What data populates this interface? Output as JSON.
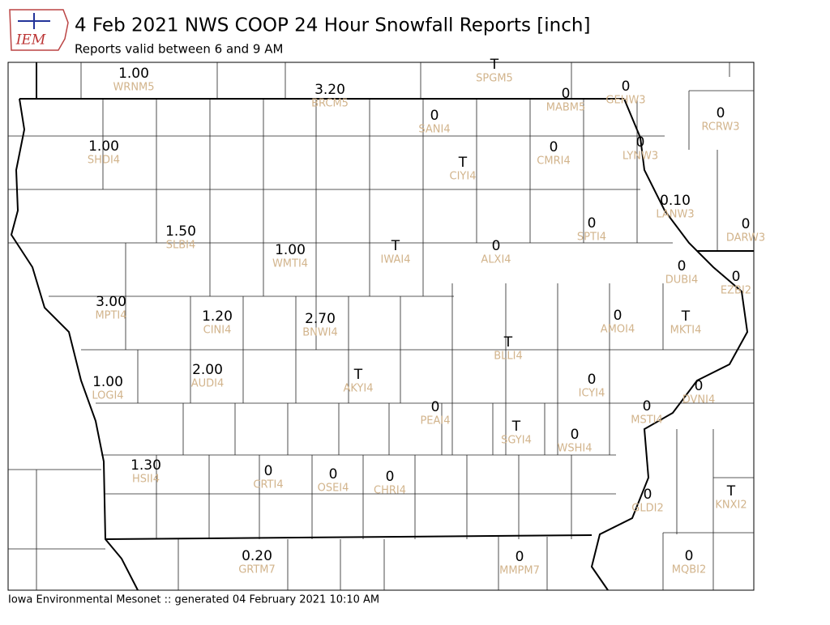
{
  "header": {
    "logo": "IEM",
    "title": "4 Feb 2021 NWS COOP 24 Hour Snowfall Reports [inch]",
    "subtitle": "Reports valid between 6 and 9 AM"
  },
  "footer": "Iowa Environmental Mesonet :: generated 04 February 2021 10:10 AM",
  "stations": [
    {
      "value": "1.00",
      "id": "WRNM5"
    },
    {
      "value": "3.20",
      "id": "BRCM5"
    },
    {
      "value": "T",
      "id": "SPGM5"
    },
    {
      "value": "0",
      "id": "MABM5"
    },
    {
      "value": "0",
      "id": "GEHW3"
    },
    {
      "value": "0",
      "id": "SANI4"
    },
    {
      "value": "0",
      "id": "RCRW3"
    },
    {
      "value": "1.00",
      "id": "SHDI4"
    },
    {
      "value": "T",
      "id": "CIYI4"
    },
    {
      "value": "0",
      "id": "CMRI4"
    },
    {
      "value": "0",
      "id": "LYNW3"
    },
    {
      "value": "0.10",
      "id": "LANW3"
    },
    {
      "value": "0",
      "id": "SPTI4"
    },
    {
      "value": "0",
      "id": "DARW3"
    },
    {
      "value": "1.50",
      "id": "SLBI4"
    },
    {
      "value": "1.00",
      "id": "WMTI4"
    },
    {
      "value": "T",
      "id": "IWAI4"
    },
    {
      "value": "0",
      "id": "ALXI4"
    },
    {
      "value": "0",
      "id": "DUBI4"
    },
    {
      "value": "0",
      "id": "EZBI2"
    },
    {
      "value": "3.00",
      "id": "MPTI4"
    },
    {
      "value": "1.20",
      "id": "CINI4"
    },
    {
      "value": "2.70",
      "id": "BNWI4"
    },
    {
      "value": "T",
      "id": "BLLI4"
    },
    {
      "value": "0",
      "id": "AMOI4"
    },
    {
      "value": "T",
      "id": "MKTI4"
    },
    {
      "value": "1.00",
      "id": "LOGI4"
    },
    {
      "value": "2.00",
      "id": "AUDI4"
    },
    {
      "value": "T",
      "id": "AKYI4"
    },
    {
      "value": "0",
      "id": "ICYI4"
    },
    {
      "value": "0",
      "id": "DVNI4"
    },
    {
      "value": "0",
      "id": "PEAI4"
    },
    {
      "value": "0",
      "id": "MSTI4"
    },
    {
      "value": "T",
      "id": "SGYI4"
    },
    {
      "value": "0",
      "id": "WSHI4"
    },
    {
      "value": "1.30",
      "id": "HSII4"
    },
    {
      "value": "0",
      "id": "CRTI4"
    },
    {
      "value": "0",
      "id": "OSEI4"
    },
    {
      "value": "0",
      "id": "CHRI4"
    },
    {
      "value": "0",
      "id": "GLDI2"
    },
    {
      "value": "T",
      "id": "KNXI2"
    },
    {
      "value": "0.20",
      "id": "GRTM7"
    },
    {
      "value": "0",
      "id": "MMPM7"
    },
    {
      "value": "0",
      "id": "MQBI2"
    }
  ]
}
